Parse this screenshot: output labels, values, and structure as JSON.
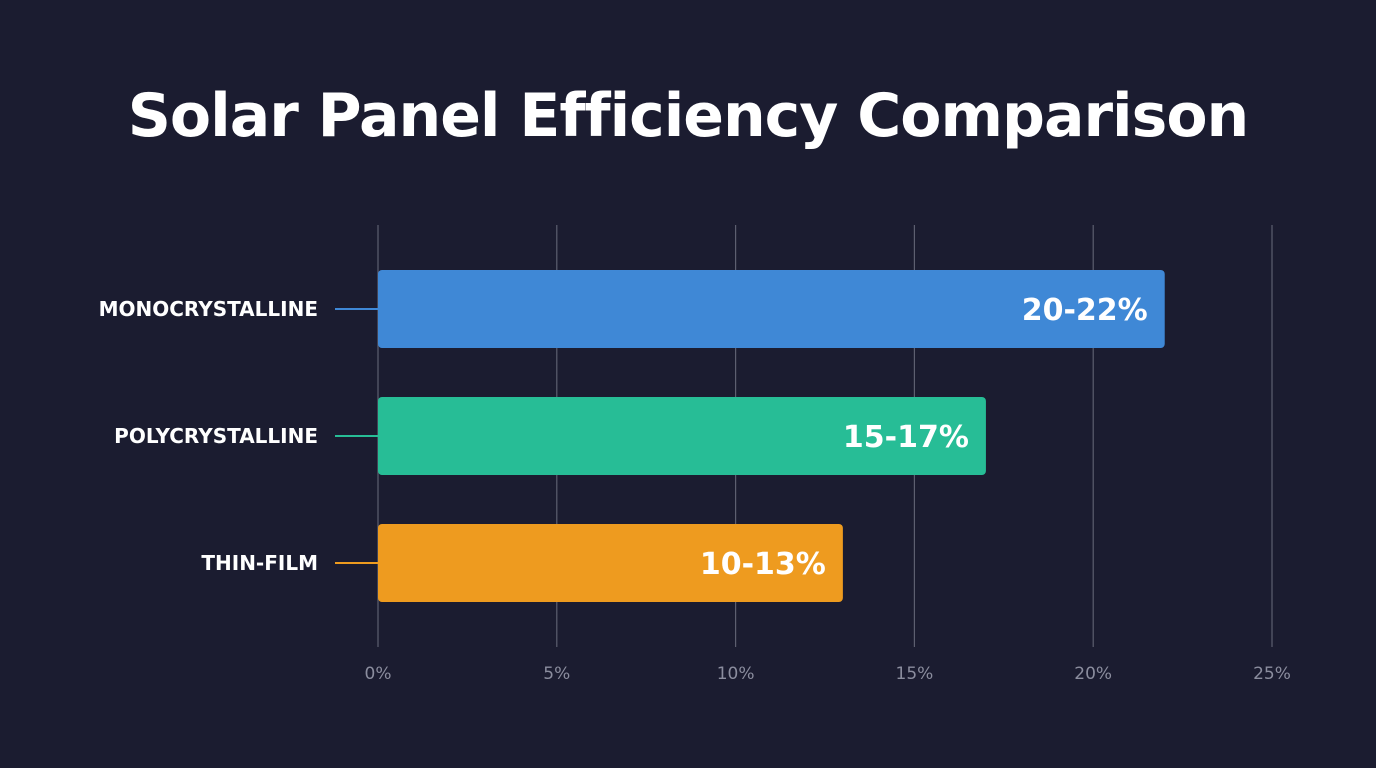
{
  "title": "Solar Panel Efficiency Comparison",
  "chart_data": {
    "type": "bar",
    "orientation": "horizontal",
    "title": "Solar Panel Efficiency Comparison",
    "xlabel": "",
    "ylabel": "",
    "categories": [
      "MONOCRYSTALLINE",
      "POLYCRYSTALLINE",
      "THIN-FILM"
    ],
    "values": [
      22,
      17,
      13
    ],
    "ranges": [
      [
        20,
        22
      ],
      [
        15,
        17
      ],
      [
        10,
        13
      ]
    ],
    "value_labels": [
      "20-22%",
      "15-17%",
      "10-13%"
    ],
    "colors": [
      "#3f88d6",
      "#27bd96",
      "#ee9b1f"
    ],
    "xlim": [
      0,
      25
    ],
    "xticks": [
      0,
      5,
      10,
      15,
      20,
      25
    ],
    "xtick_labels": [
      "0%",
      "5%",
      "10%",
      "15%",
      "20%",
      "25%"
    ],
    "grid": true,
    "legend": "none"
  },
  "colors": {
    "background": "#1b1c30",
    "grid": "#5d5f70",
    "tick_text": "#8b8d9e",
    "text": "#ffffff"
  }
}
